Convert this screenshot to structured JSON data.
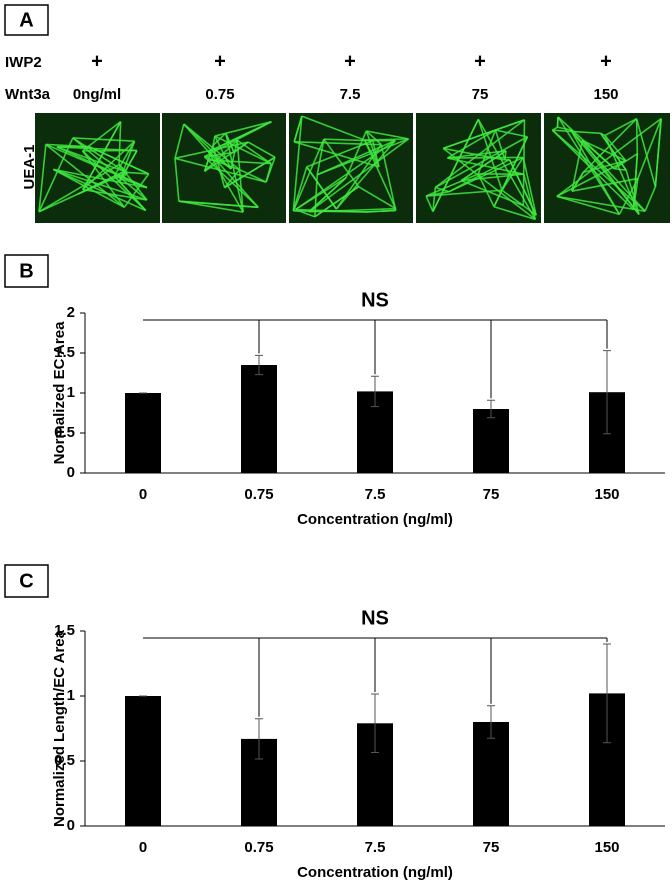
{
  "panel_a": {
    "panel_label": "A",
    "stain_label": "UEA-1",
    "rows": [
      {
        "label": "IWP2",
        "values": [
          "+",
          "+",
          "+",
          "+",
          "+"
        ]
      },
      {
        "label": "Wnt3a",
        "values": [
          "0ng/ml",
          "0.75",
          "7.5",
          "75",
          "150"
        ]
      }
    ]
  },
  "chart_data": [
    {
      "type": "bar",
      "panel_label": "B",
      "annotation": "NS",
      "y_label": "Normalized EC Area",
      "x_label": "Concentration (ng/ml)",
      "categories": [
        "0",
        "0.75",
        "7.5",
        "75",
        "150"
      ],
      "values": [
        1.0,
        1.35,
        1.02,
        0.8,
        1.01
      ],
      "errors": [
        0,
        0.12,
        0.19,
        0.11,
        0.52
      ],
      "color": "#000000",
      "ylim": [
        0,
        2
      ],
      "yticks": [
        0,
        0.5,
        1,
        1.5,
        2
      ]
    },
    {
      "type": "bar",
      "panel_label": "C",
      "annotation": "NS",
      "y_label": "Normalized Length/EC Area",
      "x_label": "Concentration (ng/ml)",
      "categories": [
        "0",
        "0.75",
        "7.5",
        "75",
        "150"
      ],
      "values": [
        1.0,
        0.67,
        0.79,
        0.8,
        1.02
      ],
      "errors": [
        0,
        0.155,
        0.225,
        0.125,
        0.38
      ],
      "color": "#000000",
      "ylim": [
        0,
        1.5
      ],
      "yticks": [
        0,
        0.5,
        1,
        1.5
      ]
    }
  ]
}
